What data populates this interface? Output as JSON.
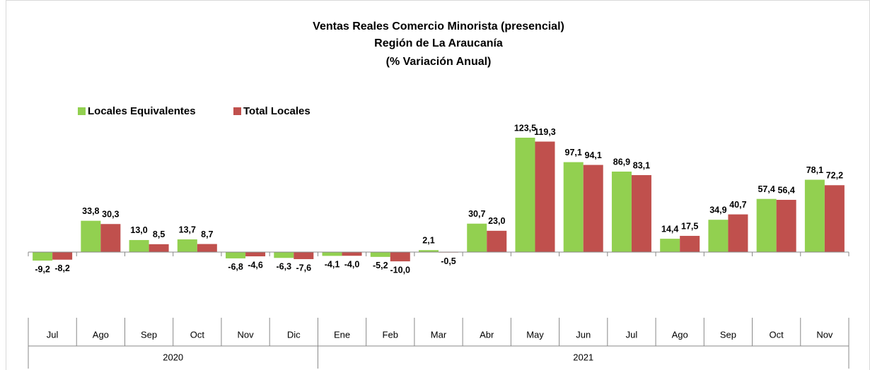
{
  "chart_data": {
    "type": "bar",
    "title": [
      "Ventas Reales Comercio Minorista (presencial)",
      "Región de La Araucanía",
      "(% Variación Anual)"
    ],
    "category_groups": [
      {
        "label": "2020",
        "categories": [
          "Jul",
          "Ago",
          "Sep",
          "Oct",
          "Nov",
          "Dic"
        ]
      },
      {
        "label": "2021",
        "categories": [
          "Ene",
          "Feb",
          "Mar",
          "Abr",
          "May",
          "Jun",
          "Jul",
          "Ago",
          "Sep",
          "Oct",
          "Nov"
        ]
      }
    ],
    "series": [
      {
        "name": "Locales Equivalentes",
        "color": "#92d050",
        "values": [
          -9.2,
          33.8,
          13.0,
          13.7,
          -6.8,
          -6.3,
          -4.1,
          -5.2,
          2.1,
          30.7,
          123.5,
          97.1,
          86.9,
          14.4,
          34.9,
          57.4,
          78.1
        ],
        "value_labels": [
          "-9,2",
          "33,8",
          "13,0",
          "13,7",
          "-6,8",
          "-6,3",
          "-4,1",
          "-5,2",
          "2,1",
          "30,7",
          "123,5",
          "97,1",
          "86,9",
          "14,4",
          "34,9",
          "57,4",
          "78,1"
        ]
      },
      {
        "name": "Total Locales",
        "color": "#c0504d",
        "values": [
          -8.2,
          30.3,
          8.5,
          8.7,
          -4.6,
          -7.6,
          -4.0,
          -10.0,
          -0.5,
          23.0,
          119.3,
          94.1,
          83.1,
          17.5,
          40.7,
          56.4,
          72.2
        ],
        "value_labels": [
          "-8,2",
          "30,3",
          "8,5",
          "8,7",
          "-4,6",
          "-7,6",
          "-4,0",
          "-10,0",
          "-0,5",
          "23,0",
          "119,3",
          "94,1",
          "83,1",
          "17,5",
          "40,7",
          "56,4",
          "72,2"
        ]
      }
    ],
    "legend": "top-left"
  }
}
